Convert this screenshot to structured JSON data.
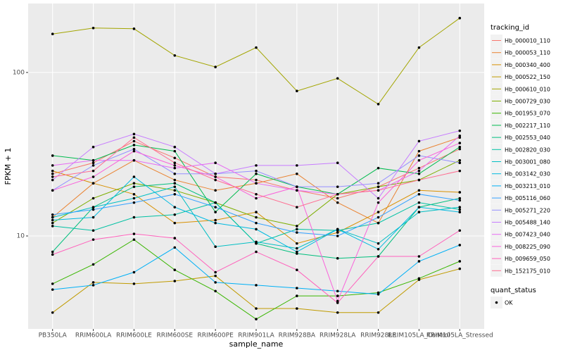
{
  "chart_data": {
    "type": "line",
    "x_label": "sample_name",
    "y_label": "FPKM + 1",
    "log_y": true,
    "grid": true,
    "ylim": [
      2.7,
      264
    ],
    "yticks": [
      10,
      100
    ],
    "legend_title": "tracking_id",
    "status_title": "quant_status",
    "status_label": "OK",
    "categories": [
      "PB350LA",
      "RRIM600LA",
      "RRIM600LE",
      "RRIM600SE",
      "RRIM600PE",
      "RRIM901LA",
      "RRIM928BA",
      "RRIM928LA",
      "RRIM928LE",
      "RRIM105LA_Control",
      "RRIM105LA_Stressed"
    ],
    "series": [
      {
        "name": "Hb_000010_110",
        "color": "#F8766D",
        "values": [
          24,
          28,
          38,
          30,
          23,
          22,
          19,
          17,
          20,
          26,
          34
        ]
      },
      {
        "name": "Hb_000053_110",
        "color": "#EA8331",
        "values": [
          13,
          21,
          29,
          22,
          19,
          21,
          24,
          16,
          12,
          33,
          40
        ]
      },
      {
        "name": "Hb_000340_400",
        "color": "#D89000",
        "values": [
          25,
          21,
          18,
          12,
          12.5,
          14,
          9,
          10.5,
          14,
          19,
          18.5
        ]
      },
      {
        "name": "Hb_000522_150",
        "color": "#C09B00",
        "values": [
          3.4,
          5.2,
          5.1,
          5.3,
          5.7,
          3.6,
          3.6,
          3.4,
          3.4,
          5.4,
          6.3
        ]
      },
      {
        "name": "Hb_000610_010",
        "color": "#A3A500",
        "values": [
          172,
          187,
          185,
          127,
          108,
          142,
          77,
          92,
          64,
          142,
          215
        ]
      },
      {
        "name": "Hb_000729_030",
        "color": "#7CAE00",
        "values": [
          12,
          17,
          21,
          19,
          16,
          13,
          11.5,
          18,
          20,
          22,
          29
        ]
      },
      {
        "name": "Hb_001953_070",
        "color": "#39B600",
        "values": [
          5.1,
          6.7,
          9.5,
          6.2,
          4.6,
          3.1,
          4.3,
          4.3,
          4.5,
          5.5,
          7.0
        ]
      },
      {
        "name": "Hb_002217_110",
        "color": "#00BB4E",
        "values": [
          31,
          29,
          36,
          33,
          14,
          24,
          20,
          18,
          26,
          24,
          35
        ]
      },
      {
        "name": "Hb_002553_040",
        "color": "#00BF7D",
        "values": [
          8,
          15,
          20,
          21,
          16,
          9,
          7.8,
          7.3,
          7.5,
          15,
          17
        ]
      },
      {
        "name": "Hb_002820_030",
        "color": "#00C1A3",
        "values": [
          11.5,
          10.8,
          13,
          13.5,
          16,
          9,
          11,
          10.8,
          12,
          16,
          14.5
        ]
      },
      {
        "name": "Hb_003001_080",
        "color": "#00BFC4",
        "values": [
          13,
          15,
          17,
          20,
          8.6,
          9.2,
          8.4,
          11,
          9,
          14,
          15
        ]
      },
      {
        "name": "Hb_003142_030",
        "color": "#00BAE0",
        "values": [
          12.5,
          13,
          23,
          15,
          12,
          11,
          8,
          11,
          8.3,
          15,
          14
        ]
      },
      {
        "name": "Hb_003213_010",
        "color": "#00B0F6",
        "values": [
          4.7,
          5,
          6,
          8.5,
          5.2,
          5,
          4.8,
          4.6,
          4.4,
          7,
          8.8
        ]
      },
      {
        "name": "Hb_005116_060",
        "color": "#35A2FF",
        "values": [
          13.5,
          14.5,
          16,
          18,
          15,
          12,
          10.5,
          10,
          13,
          18,
          16.5
        ]
      },
      {
        "name": "Hb_005271_220",
        "color": "#9590FF",
        "values": [
          19,
          27,
          34,
          24,
          24,
          25,
          20,
          20,
          21,
          31,
          28
        ]
      },
      {
        "name": "Hb_005488_140",
        "color": "#C77CFF",
        "values": [
          22,
          35,
          42,
          35,
          24,
          27,
          27,
          28,
          17,
          38,
          44
        ]
      },
      {
        "name": "Hb_007423_040",
        "color": "#E76BF3",
        "values": [
          27,
          29,
          29,
          26,
          28,
          21,
          19,
          18,
          19,
          25,
          41
        ]
      },
      {
        "name": "Hb_008225_090",
        "color": "#FA62DB",
        "values": [
          19,
          23,
          33,
          27,
          23,
          17,
          20,
          4,
          16,
          29,
          37
        ]
      },
      {
        "name": "Hb_009659_050",
        "color": "#FF62BC",
        "values": [
          7.7,
          9.5,
          10.3,
          9.7,
          6,
          8,
          6.2,
          3.9,
          7.5,
          7.5,
          10.8
        ]
      },
      {
        "name": "Hb_152175_010",
        "color": "#FF6C91",
        "values": [
          23,
          25,
          40,
          28,
          22,
          18,
          15,
          18,
          19,
          22,
          25
        ]
      }
    ]
  }
}
